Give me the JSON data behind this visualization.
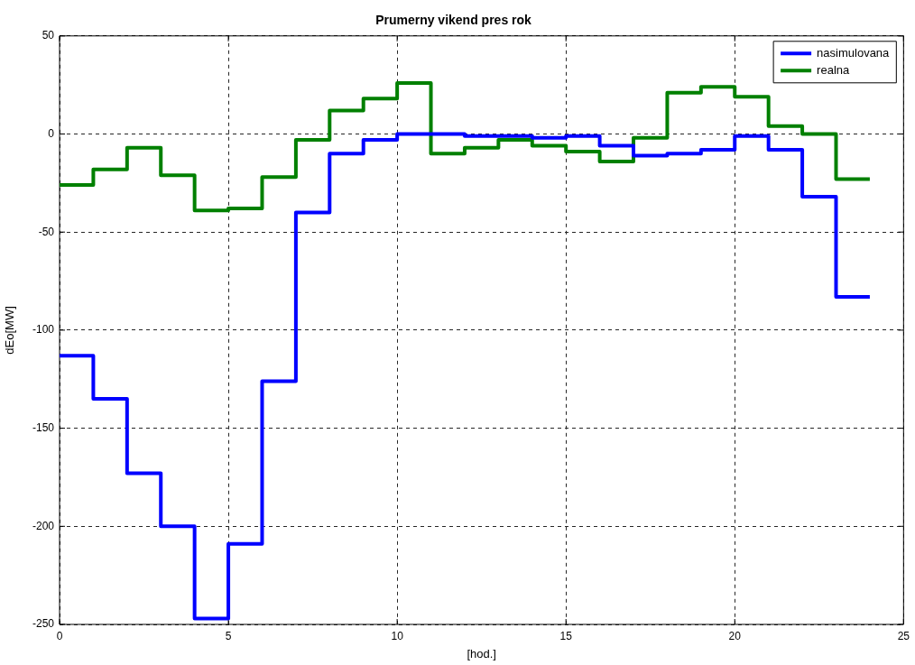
{
  "chart_data": {
    "type": "step",
    "title": "Prumerny vikend pres rok",
    "xlabel": "[hod.]",
    "ylabel": "dEo[MW]",
    "x": [
      0,
      1,
      2,
      3,
      4,
      5,
      6,
      7,
      8,
      9,
      10,
      11,
      12,
      13,
      14,
      15,
      16,
      17,
      18,
      19,
      20,
      21,
      22,
      23,
      24
    ],
    "series": [
      {
        "name": "nasimulovana",
        "color": "#0000ff",
        "values": [
          -113,
          -135,
          -173,
          -200,
          -247,
          -209,
          -126,
          -40,
          -10,
          -3,
          0,
          0,
          -1,
          -1,
          -2,
          -1,
          -6,
          -11,
          -10,
          -8,
          -1,
          -8,
          -32,
          -83,
          -83
        ]
      },
      {
        "name": "realna",
        "color": "#008000",
        "values": [
          -26,
          -18,
          -7,
          -21,
          -39,
          -38,
          -22,
          -3,
          12,
          18,
          26,
          -10,
          -7,
          -3,
          -6,
          -9,
          -14,
          -2,
          21,
          24,
          19,
          4,
          0,
          -23,
          -23
        ]
      }
    ],
    "xlim": [
      0,
      25
    ],
    "xticks": [
      0,
      5,
      10,
      15,
      20,
      25
    ],
    "ylim": [
      -250,
      50
    ],
    "yticks": [
      -250,
      -200,
      -150,
      -100,
      -50,
      0,
      50
    ],
    "grid": true,
    "legend": "top right"
  }
}
